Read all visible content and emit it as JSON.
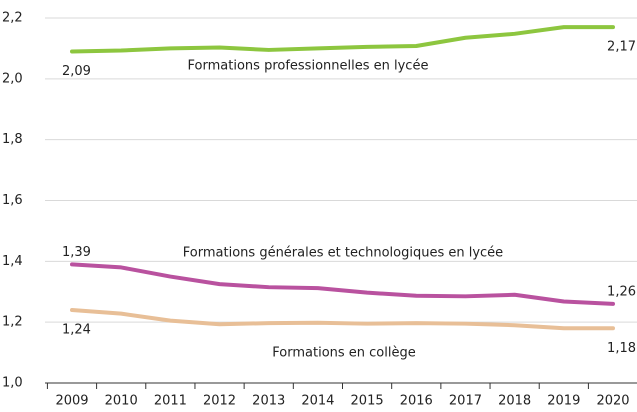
{
  "chart_data": {
    "type": "line",
    "categories": [
      "2009",
      "2010",
      "2011",
      "2012",
      "2013",
      "2014",
      "2015",
      "2016",
      "2017",
      "2018",
      "2019",
      "2020"
    ],
    "ylim": [
      1.0,
      2.2
    ],
    "yticks": [
      {
        "value": 1.0,
        "label": "1,0"
      },
      {
        "value": 1.2,
        "label": "1,2"
      },
      {
        "value": 1.4,
        "label": "1,4"
      },
      {
        "value": 1.6,
        "label": "1,6"
      },
      {
        "value": 1.8,
        "label": "1,8"
      },
      {
        "value": 2.0,
        "label": "2,0"
      },
      {
        "value": 2.2,
        "label": "2,2"
      }
    ],
    "grid": true,
    "series": [
      {
        "name": "Formations professionnelles en lycée",
        "color": "#8dc63f",
        "values": [
          2.09,
          2.093,
          2.1,
          2.103,
          2.095,
          2.1,
          2.105,
          2.108,
          2.135,
          2.148,
          2.17,
          2.17
        ],
        "value_labels": [
          "2,09",
          null,
          null,
          null,
          null,
          null,
          null,
          null,
          null,
          null,
          null,
          "2,17"
        ]
      },
      {
        "name": "Formations générales et technologiques en lycée",
        "color": "#b9529f",
        "values": [
          1.39,
          1.38,
          1.35,
          1.325,
          1.315,
          1.312,
          1.297,
          1.287,
          1.285,
          1.29,
          1.268,
          1.26
        ],
        "value_labels": [
          "1,39",
          null,
          null,
          null,
          null,
          null,
          null,
          null,
          null,
          null,
          null,
          "1,26"
        ]
      },
      {
        "name": "Formations en collège",
        "color": "#e8bf97",
        "values": [
          1.24,
          1.228,
          1.205,
          1.193,
          1.197,
          1.198,
          1.195,
          1.197,
          1.195,
          1.19,
          1.18,
          1.18
        ],
        "value_labels": [
          "1,24",
          null,
          null,
          null,
          null,
          null,
          null,
          null,
          null,
          null,
          null,
          "1,18"
        ]
      }
    ]
  }
}
